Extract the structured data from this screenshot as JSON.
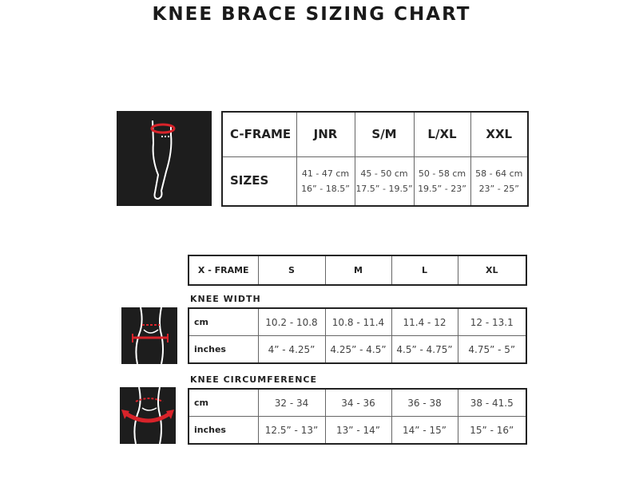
{
  "title": "KNEE BRACE SIZING CHART",
  "colors": {
    "accent": "#d8232a",
    "icon_bg": "#1d1d1d"
  },
  "c_frame": {
    "header": "C-FRAME",
    "sizes": [
      "JNR",
      "S/M",
      "L/XL",
      "XXL"
    ],
    "row_label": "SIZES",
    "cm": [
      "41 - 47 cm",
      "45 - 50 cm",
      "50 - 58 cm",
      "58 - 64 cm"
    ],
    "inches": [
      "16” - 18.5”",
      "17.5” - 19.5”",
      "19.5” - 23”",
      "23” - 25”"
    ]
  },
  "x_frame": {
    "header": "X - FRAME",
    "sizes": [
      "S",
      "M",
      "L",
      "XL"
    ]
  },
  "knee_width": {
    "label": "KNEE WIDTH",
    "cm_label": "cm",
    "cm": [
      "10.2 - 10.8",
      "10.8 - 11.4",
      "11.4 - 12",
      "12 - 13.1"
    ],
    "in_label": "inches",
    "inches": [
      "4” - 4.25”",
      "4.25” - 4.5”",
      "4.5” - 4.75”",
      "4.75” - 5”"
    ]
  },
  "knee_circumference": {
    "label": "KNEE CIRCUMFERENCE",
    "cm_label": "cm",
    "cm": [
      "32 - 34",
      "34 - 36",
      "36 - 38",
      "38 - 41.5"
    ],
    "in_label": "inches",
    "inches": [
      "12.5” - 13”",
      "13” - 14”",
      "14” - 15”",
      "15” - 16”"
    ]
  }
}
